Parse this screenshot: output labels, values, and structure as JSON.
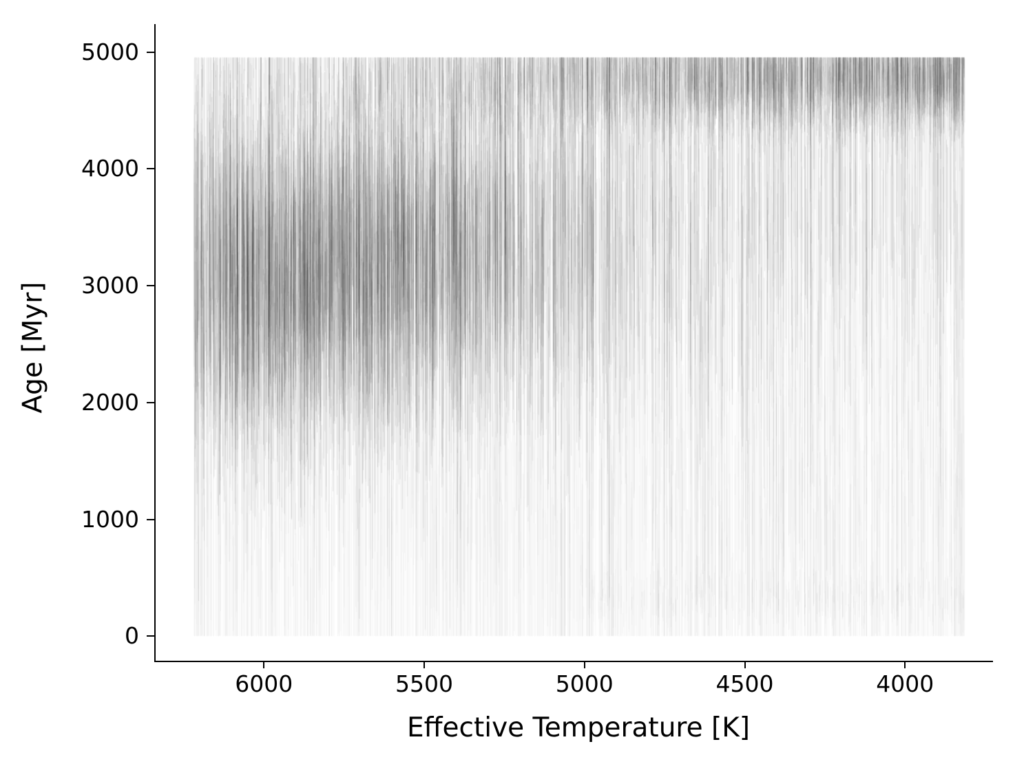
{
  "chart_data": {
    "type": "scatter",
    "style": "vertical-stroke density cloud (grayscale posterior samples per star)",
    "title": "",
    "xlabel": "Effective Temperature [K]",
    "ylabel": "Age [Myr]",
    "x_axis_reversed": true,
    "xlim": [
      6340,
      3730
    ],
    "ylim": [
      -210,
      5240
    ],
    "x_ticks": [
      6000,
      5500,
      5000,
      4500,
      4000
    ],
    "y_ticks": [
      0,
      1000,
      2000,
      3000,
      4000,
      5000
    ],
    "x_data_range": [
      6220,
      3815
    ],
    "y_data_range": [
      0,
      4955
    ],
    "grid": false,
    "legend": false,
    "stroke_color": "#000000",
    "background_color": "#ffffff",
    "density_features": [
      {
        "name": "hot-star age concentration",
        "teff_range": [
          6200,
          5400
        ],
        "age_center_myr": 3000,
        "age_spread_myr": 800,
        "relative_density": "darkest"
      },
      {
        "name": "upper-edge age pileup near 4800-5000 Myr",
        "teff_range": [
          5300,
          3850
        ],
        "age_center_myr": 4830,
        "age_spread_myr": 200,
        "relative_density": "dark, strengthens toward cooler stars"
      },
      {
        "name": "diffuse vertical streaks over full age range",
        "teff_range": [
          6220,
          3815
        ],
        "age_range_myr": [
          0,
          4955
        ],
        "relative_density": "faint"
      },
      {
        "name": "sparse low-age dashes",
        "teff_range": [
          5100,
          3850
        ],
        "age_center_myr": 330,
        "age_spread_myr": 120,
        "relative_density": "very faint"
      }
    ],
    "render": {
      "seed": 20,
      "stroke_width": 0.9,
      "column_strokes": 3600,
      "full_column_prob": 0.55,
      "full_column_alpha": [
        0.012,
        0.032
      ],
      "segments_per_column": [
        2,
        4
      ],
      "components": {
        "blob": {
          "base_center": 2950,
          "center_slope": 900,
          "sigma": 620,
          "half_len": [
            250,
            1150
          ],
          "alpha": [
            0.05,
            0.12
          ],
          "weight_peak_s": 0.17,
          "weight_peak": 0.62,
          "weight_width": 0.22,
          "weight_floor": 0.1
        },
        "top": {
          "center": 4800,
          "center_sigma": 150,
          "half_len": [
            80,
            500
          ],
          "alpha": [
            0.05,
            0.11
          ],
          "weight_base": 0.1,
          "weight_slope": 0.42
        },
        "uniform": {
          "range": [
            150,
            4850
          ],
          "half_len": [
            200,
            1000
          ],
          "alpha": [
            0.02,
            0.055
          ],
          "weight": 0.45
        }
      },
      "extra_passes": {
        "blob_core": {
          "count": 1400,
          "s_center": 0.17,
          "s_sigma": 0.13,
          "center_base": 2950,
          "center_slope": 900,
          "center_sigma": 520,
          "half_len": [
            200,
            900
          ],
          "alpha": [
            0.06,
            0.14
          ]
        },
        "top_band": {
          "count": 1000,
          "s_min": 0.25,
          "center": 4830,
          "center_sigma": 120,
          "half_len": [
            60,
            320
          ],
          "alpha": [
            0.05,
            0.12
          ]
        },
        "low_band": {
          "count": 300,
          "s_min": 0.5,
          "center": 330,
          "center_sigma": 90,
          "half_len": [
            50,
            170
          ],
          "alpha": [
            0.03,
            0.06
          ]
        }
      }
    }
  }
}
